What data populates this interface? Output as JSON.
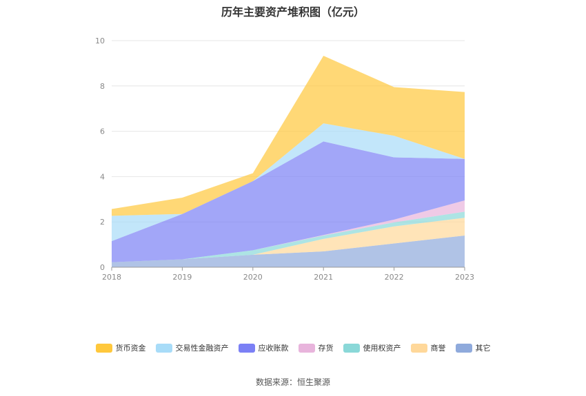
{
  "page": {
    "title": "历年主要资产堆积图（亿元）",
    "source": "数据来源：恒生聚源"
  },
  "chart_data": {
    "type": "area",
    "stacked": true,
    "title": "历年主要资产堆积图（亿元）",
    "xlabel": "",
    "ylabel": "",
    "categories": [
      "2018",
      "2019",
      "2020",
      "2021",
      "2022",
      "2023"
    ],
    "ylim": [
      0,
      10
    ],
    "yticks": [
      0,
      2,
      4,
      6,
      8,
      10
    ],
    "grid": true,
    "legend_position": "bottom",
    "series": [
      {
        "name": "其它",
        "color": "#8FAADC",
        "values": [
          0.22,
          0.35,
          0.55,
          0.7,
          1.05,
          1.4
        ]
      },
      {
        "name": "商誉",
        "color": "#FFD89A",
        "values": [
          0.0,
          0.0,
          0.0,
          0.55,
          0.75,
          0.78
        ]
      },
      {
        "name": "使用权资产",
        "color": "#8AD8D8",
        "values": [
          0.0,
          0.0,
          0.2,
          0.15,
          0.18,
          0.27
        ]
      },
      {
        "name": "存货",
        "color": "#E8B4DC",
        "values": [
          0.0,
          0.0,
          0.0,
          0.02,
          0.12,
          0.5
        ]
      },
      {
        "name": "应收账款",
        "color": "#7B80F5",
        "values": [
          0.93,
          2.0,
          3.05,
          4.13,
          2.75,
          1.83
        ]
      },
      {
        "name": "交易性金融资产",
        "color": "#A8DCF8",
        "values": [
          1.12,
          0.0,
          0.0,
          0.8,
          0.95,
          0.0
        ]
      },
      {
        "name": "货币资金",
        "color": "#FFC83C",
        "values": [
          0.3,
          0.72,
          0.35,
          2.98,
          2.15,
          2.95
        ]
      }
    ]
  }
}
